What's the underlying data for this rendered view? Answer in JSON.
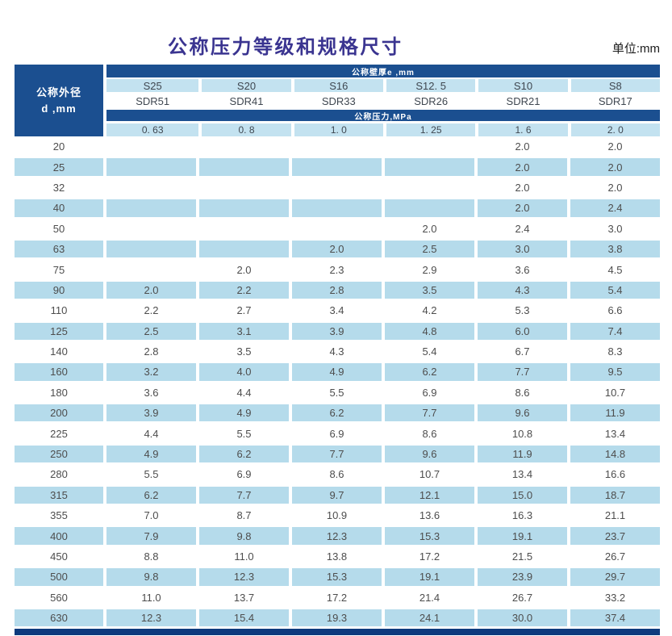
{
  "page": {
    "title": "公称压力等级和规格尺寸",
    "unit_label": "单位:mm"
  },
  "table": {
    "corner_header": {
      "line1": "公称外径",
      "line2": "d ,mm"
    },
    "wall_thickness_header": "公称壁厚e ,mm",
    "pressure_header": "公称压力,MPa",
    "s_labels": [
      "S25",
      "S20",
      "S16",
      "S12. 5",
      "S10",
      "S8"
    ],
    "sdr_labels": [
      "SDR51",
      "SDR41",
      "SDR33",
      "SDR26",
      "SDR21",
      "SDR17"
    ],
    "pressure_values": [
      "0. 63",
      "0. 8",
      "1. 0",
      "1. 25",
      "1. 6",
      "2. 0"
    ],
    "rows": [
      {
        "d": "20",
        "values": [
          "",
          "",
          "",
          "",
          "2.0",
          "2.0"
        ]
      },
      {
        "d": "25",
        "values": [
          "",
          "",
          "",
          "",
          "2.0",
          "2.0"
        ]
      },
      {
        "d": "32",
        "values": [
          "",
          "",
          "",
          "",
          "2.0",
          "2.0"
        ]
      },
      {
        "d": "40",
        "values": [
          "",
          "",
          "",
          "",
          "2.0",
          "2.4"
        ]
      },
      {
        "d": "50",
        "values": [
          "",
          "",
          "",
          "2.0",
          "2.4",
          "3.0"
        ]
      },
      {
        "d": "63",
        "values": [
          "",
          "",
          "2.0",
          "2.5",
          "3.0",
          "3.8"
        ]
      },
      {
        "d": "75",
        "values": [
          "",
          "2.0",
          "2.3",
          "2.9",
          "3.6",
          "4.5"
        ]
      },
      {
        "d": "90",
        "values": [
          "2.0",
          "2.2",
          "2.8",
          "3.5",
          "4.3",
          "5.4"
        ]
      },
      {
        "d": "110",
        "values": [
          "2.2",
          "2.7",
          "3.4",
          "4.2",
          "5.3",
          "6.6"
        ]
      },
      {
        "d": "125",
        "values": [
          "2.5",
          "3.1",
          "3.9",
          "4.8",
          "6.0",
          "7.4"
        ]
      },
      {
        "d": "140",
        "values": [
          "2.8",
          "3.5",
          "4.3",
          "5.4",
          "6.7",
          "8.3"
        ]
      },
      {
        "d": "160",
        "values": [
          "3.2",
          "4.0",
          "4.9",
          "6.2",
          "7.7",
          "9.5"
        ]
      },
      {
        "d": "180",
        "values": [
          "3.6",
          "4.4",
          "5.5",
          "6.9",
          "8.6",
          "10.7"
        ]
      },
      {
        "d": "200",
        "values": [
          "3.9",
          "4.9",
          "6.2",
          "7.7",
          "9.6",
          "11.9"
        ]
      },
      {
        "d": "225",
        "values": [
          "4.4",
          "5.5",
          "6.9",
          "8.6",
          "10.8",
          "13.4"
        ]
      },
      {
        "d": "250",
        "values": [
          "4.9",
          "6.2",
          "7.7",
          "9.6",
          "11.9",
          "14.8"
        ]
      },
      {
        "d": "280",
        "values": [
          "5.5",
          "6.9",
          "8.6",
          "10.7",
          "13.4",
          "16.6"
        ]
      },
      {
        "d": "315",
        "values": [
          "6.2",
          "7.7",
          "9.7",
          "12.1",
          "15.0",
          "18.7"
        ]
      },
      {
        "d": "355",
        "values": [
          "7.0",
          "8.7",
          "10.9",
          "13.6",
          "16.3",
          "21.1"
        ]
      },
      {
        "d": "400",
        "values": [
          "7.9",
          "9.8",
          "12.3",
          "15.3",
          "19.1",
          "23.7"
        ]
      },
      {
        "d": "450",
        "values": [
          "8.8",
          "11.0",
          "13.8",
          "17.2",
          "21.5",
          "26.7"
        ]
      },
      {
        "d": "500",
        "values": [
          "9.8",
          "12.3",
          "15.3",
          "19.1",
          "23.9",
          "29.7"
        ]
      },
      {
        "d": "560",
        "values": [
          "11.0",
          "13.7",
          "17.2",
          "21.4",
          "26.7",
          "33.2"
        ]
      },
      {
        "d": "630",
        "values": [
          "12.3",
          "15.4",
          "19.3",
          "24.1",
          "30.0",
          "37.4"
        ]
      }
    ]
  },
  "colors": {
    "dark_blue": "#1b4f90",
    "bottom_bar": "#0d3a7d",
    "stripe": "#b5dbeb",
    "header_stripe": "#c3e2f0",
    "title": "#3a3490"
  }
}
